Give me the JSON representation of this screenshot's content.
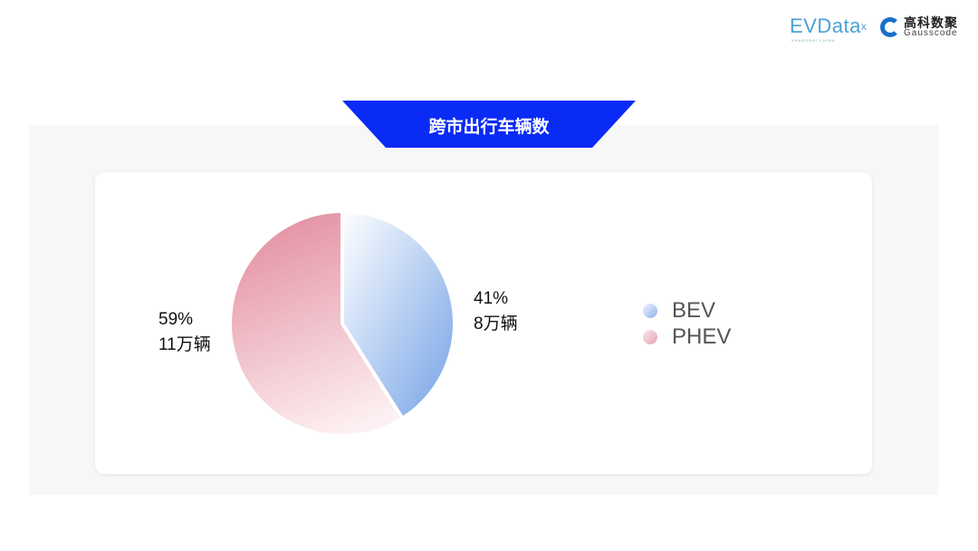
{
  "header": {
    "logo_evdata": "EVData",
    "logo_evdata_sub": "SHANGHAI CHINA",
    "logo_gauss_cn": "高科数聚",
    "logo_gauss_en": "Gausscode"
  },
  "chart_data": {
    "type": "pie",
    "title": "跨市出行车辆数",
    "categories": [
      "BEV",
      "PHEV"
    ],
    "values": [
      41,
      59
    ],
    "counts": [
      "8万辆",
      "11万辆"
    ],
    "percent_labels": [
      "41%",
      "59%"
    ],
    "colors": {
      "BEV": [
        "#ffffff",
        "#74a2e6"
      ],
      "PHEV": [
        "#e38fa1",
        "#fdf0f2"
      ]
    },
    "legend_position": "right",
    "banner_color": "#0a2bf5"
  }
}
